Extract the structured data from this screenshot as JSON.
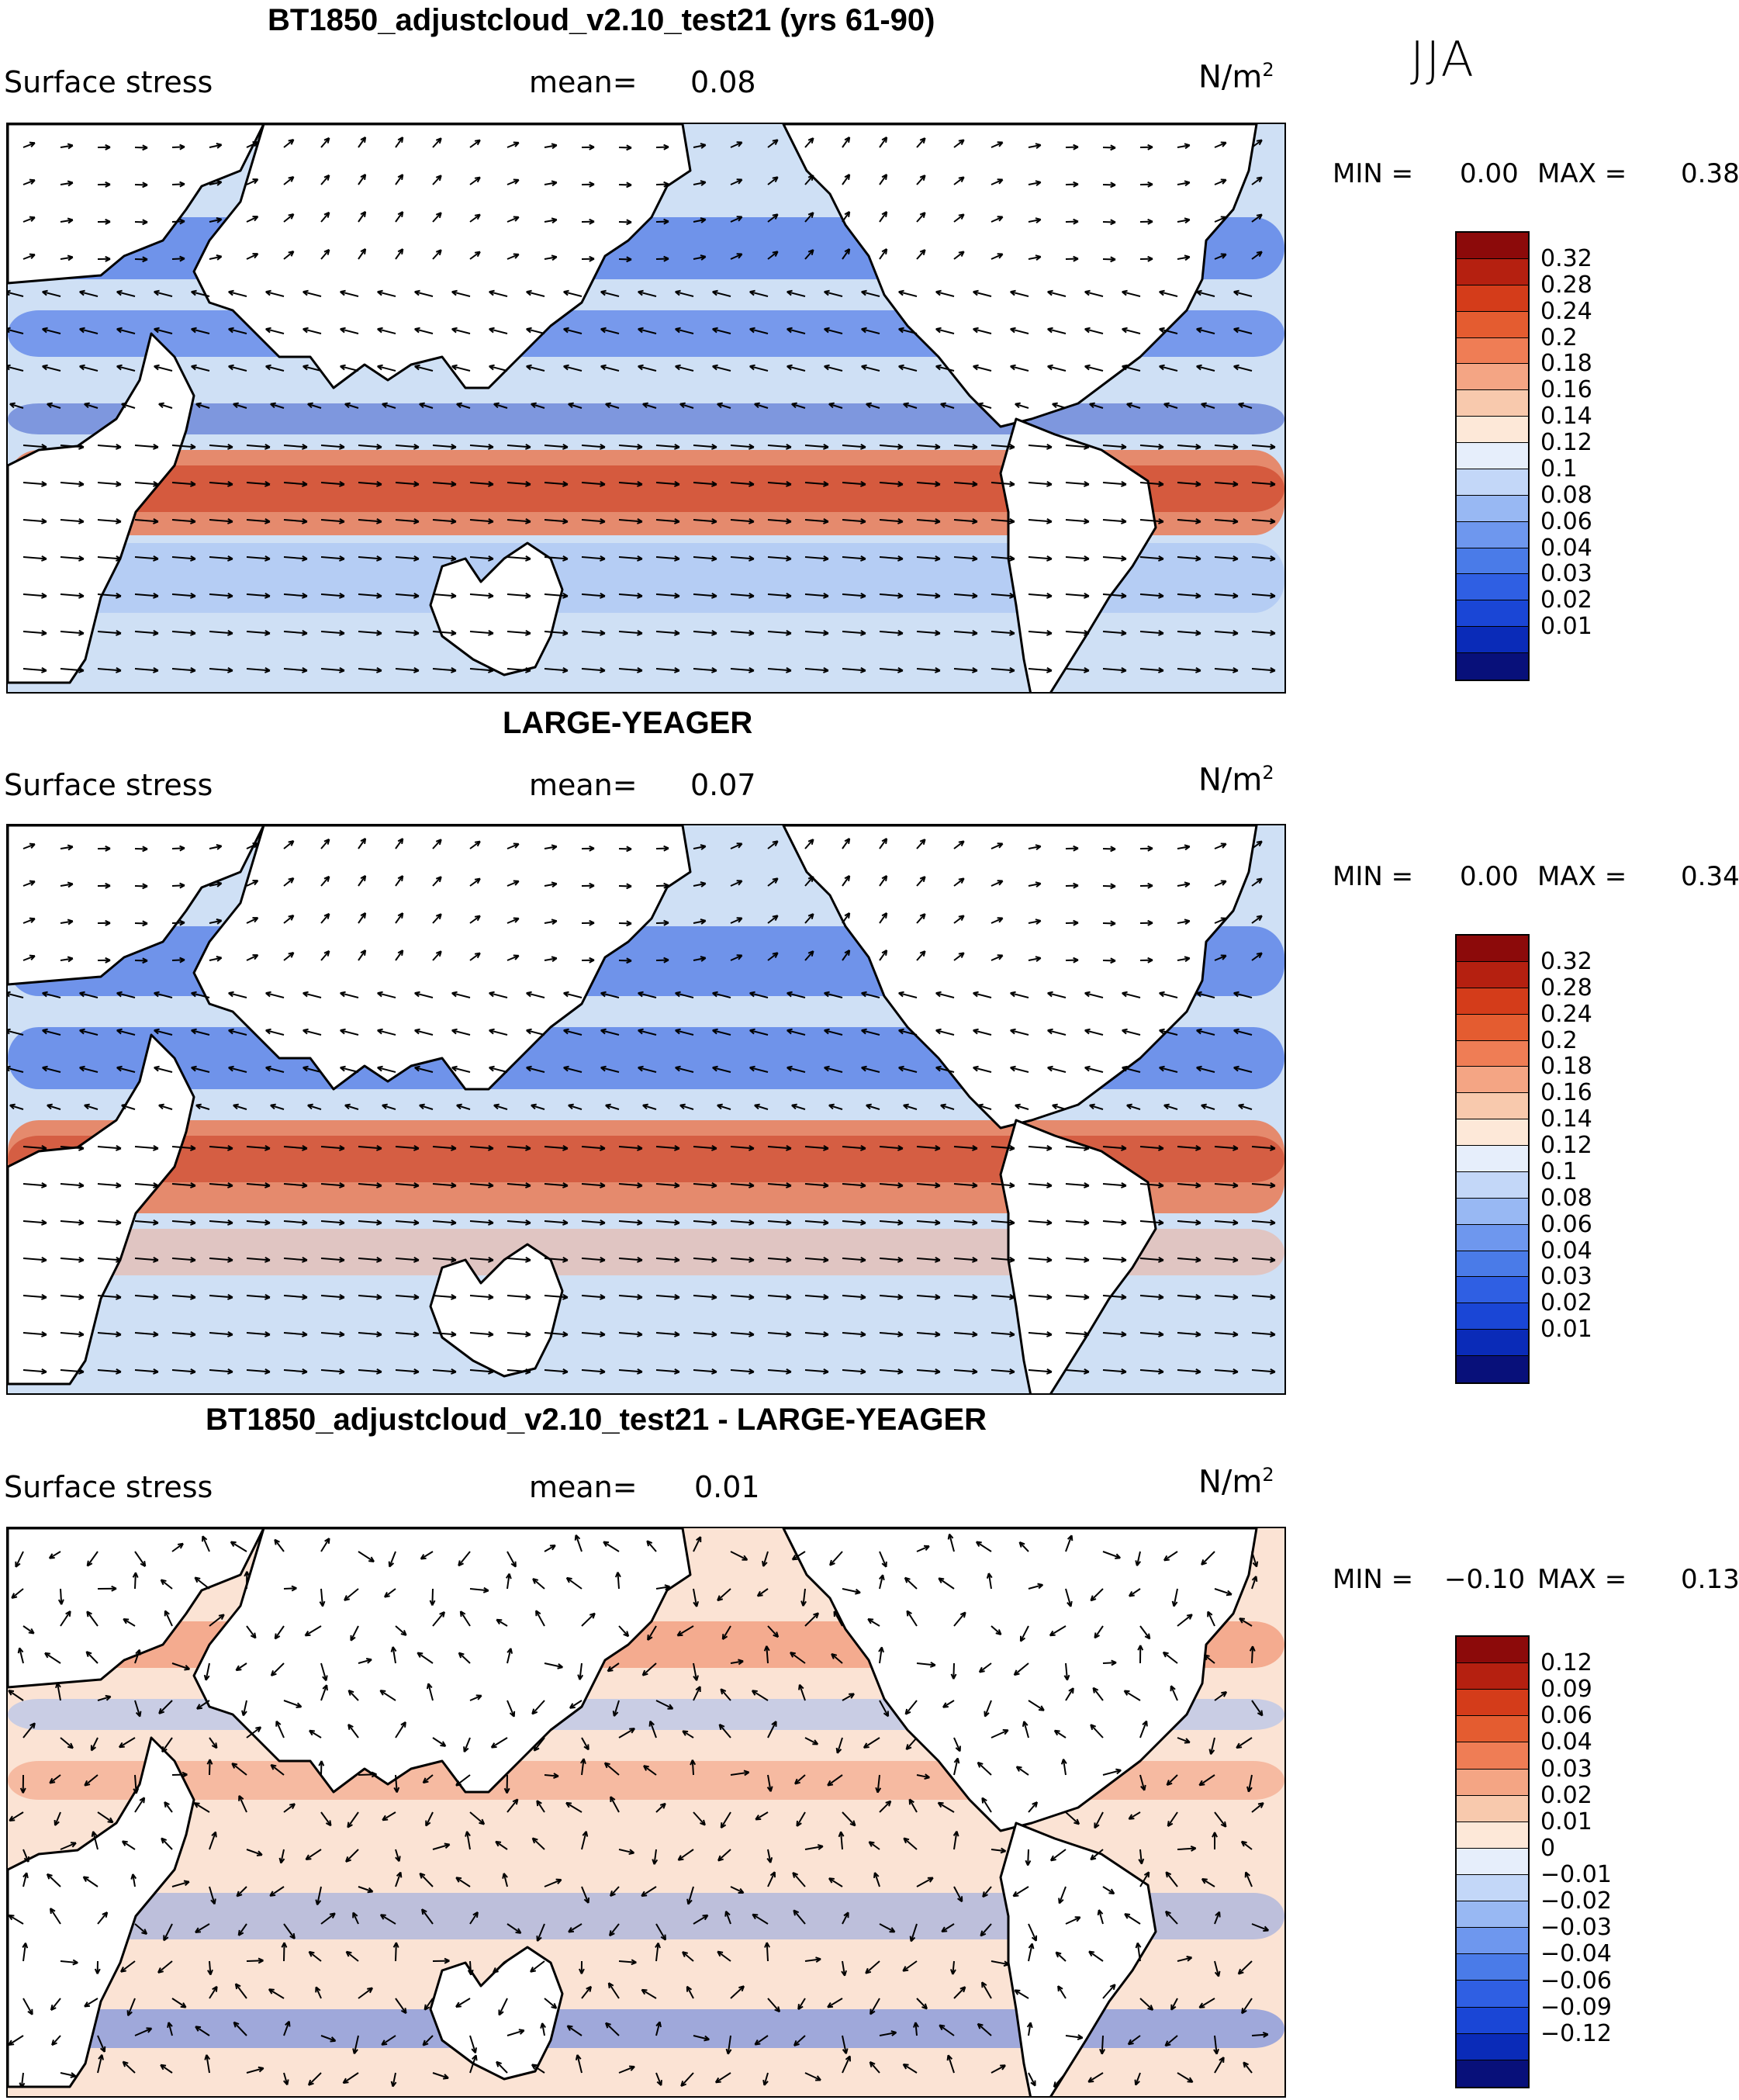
{
  "season": "JJA",
  "colors": {
    "abs_scale": [
      "#08107a",
      "#0a2bb8",
      "#1a46d6",
      "#2f5fe3",
      "#4a7be8",
      "#6e97ee",
      "#98b8f3",
      "#c3d7f8",
      "#e6eefb",
      "#fde8d8",
      "#f8c9ad",
      "#f4a584",
      "#ef7d55",
      "#e45c30",
      "#d43c1a",
      "#b52010",
      "#8c0a0a"
    ],
    "diff_scale": [
      "#08107a",
      "#0a2bb8",
      "#1a46d6",
      "#2f5fe3",
      "#4a7be8",
      "#6e97ee",
      "#98b8f3",
      "#c3d7f8",
      "#e6eefb",
      "#fde8d8",
      "#f8c9ad",
      "#f4a584",
      "#ef7d55",
      "#e45c30",
      "#d43c1a",
      "#b52010",
      "#8c0a0a"
    ]
  },
  "panels": [
    {
      "title": "BT1850_adjustcloud_v2.10_test21 (yrs 61-90)",
      "field_label": "Surface stress",
      "mean_label": "mean=",
      "mean_value": "0.08",
      "units_base": "N/m",
      "units_exp": "2",
      "min_label": "MIN =",
      "min_value": "0.00",
      "max_label": "MAX =",
      "max_value": "0.38",
      "colorbar_labels": [
        "0.32",
        "0.28",
        "0.24",
        "0.2",
        "0.18",
        "0.16",
        "0.14",
        "0.12",
        "0.1",
        "0.08",
        "0.06",
        "0.04",
        "0.03",
        "0.02",
        "0.01"
      ]
    },
    {
      "title": "LARGE-YEAGER",
      "field_label": "Surface stress",
      "mean_label": "mean=",
      "mean_value": "0.07",
      "units_base": "N/m",
      "units_exp": "2",
      "min_label": "MIN =",
      "min_value": "0.00",
      "max_label": "MAX =",
      "max_value": "0.34",
      "colorbar_labels": [
        "0.32",
        "0.28",
        "0.24",
        "0.2",
        "0.18",
        "0.16",
        "0.14",
        "0.12",
        "0.1",
        "0.08",
        "0.06",
        "0.04",
        "0.03",
        "0.02",
        "0.01"
      ]
    },
    {
      "title": "BT1850_adjustcloud_v2.10_test21 - LARGE-YEAGER",
      "field_label": "Surface stress",
      "mean_label": "mean=",
      "mean_value": "0.01",
      "units_base": "N/m",
      "units_exp": "2",
      "min_label": "MIN =",
      "min_value": "−0.10",
      "max_label": "MAX =",
      "max_value": "0.13",
      "colorbar_labels": [
        "0.12",
        "0.09",
        "0.06",
        "0.04",
        "0.03",
        "0.02",
        "0.01",
        "0",
        "−0.01",
        "−0.02",
        "−0.03",
        "−0.04",
        "−0.06",
        "−0.09",
        "−0.12"
      ]
    }
  ]
}
